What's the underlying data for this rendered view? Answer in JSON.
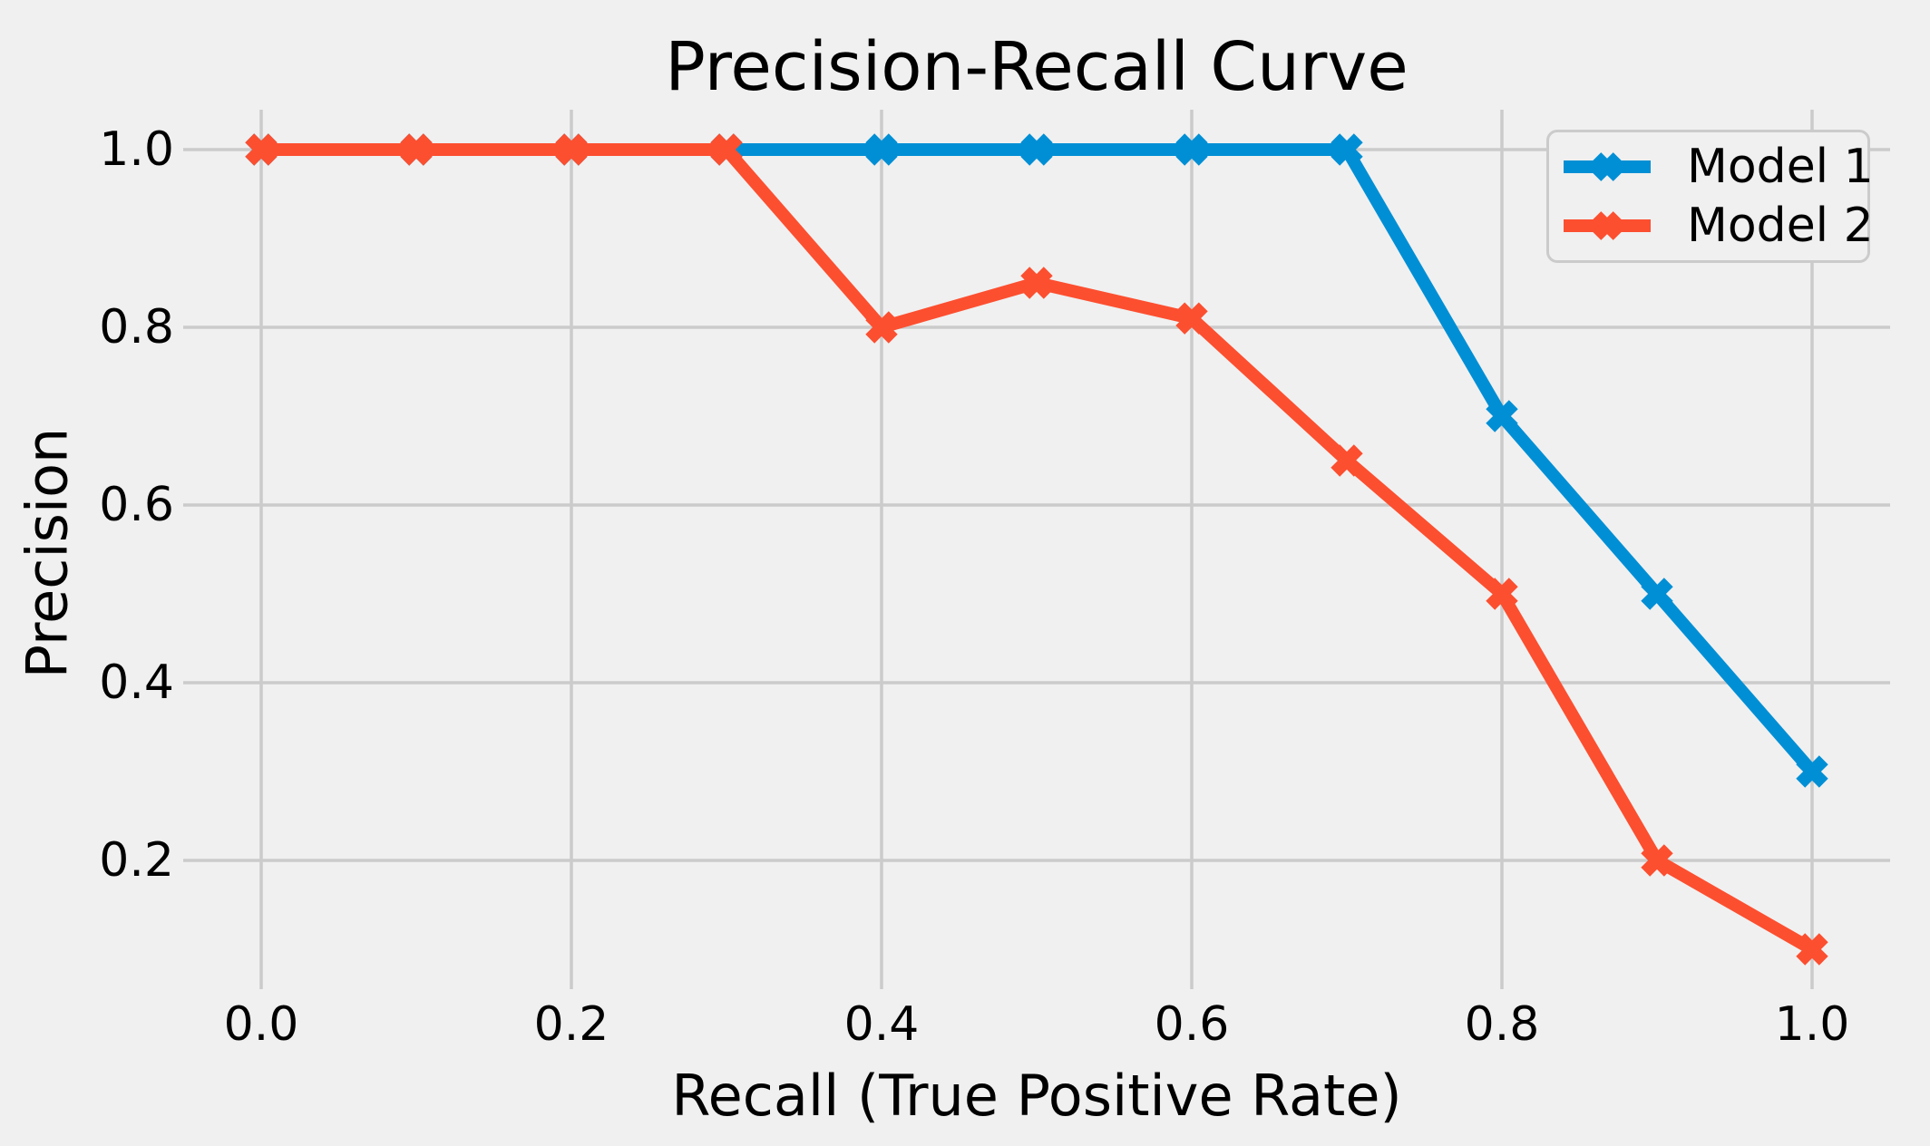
{
  "figure": {
    "background_color": "#f0f0f0",
    "grid_color": "#cbcbcb",
    "text_color": "#000000"
  },
  "chart_data": {
    "type": "line",
    "title": "Precision-Recall Curve",
    "xlabel": "Recall (True Positive Rate)",
    "ylabel": "Precision",
    "grid": true,
    "legend_position": "upper right",
    "xlim": [
      -0.05,
      1.05
    ],
    "ylim": [
      0.055,
      1.045
    ],
    "x": [
      0.0,
      0.1,
      0.2,
      0.3,
      0.4,
      0.5,
      0.6,
      0.7,
      0.8,
      0.9,
      1.0
    ],
    "series": [
      {
        "name": "Model 1",
        "color": "#008fd5",
        "marker": "X",
        "values": [
          1.0,
          1.0,
          1.0,
          1.0,
          1.0,
          1.0,
          1.0,
          1.0,
          0.7,
          0.5,
          0.3
        ]
      },
      {
        "name": "Model 2",
        "color": "#fc4f30",
        "marker": "X",
        "values": [
          1.0,
          1.0,
          1.0,
          1.0,
          0.8,
          0.85,
          0.81,
          0.65,
          0.5,
          0.2,
          0.1
        ]
      }
    ],
    "x_ticks": {
      "values": [
        0.0,
        0.2,
        0.4,
        0.6,
        0.8,
        1.0
      ],
      "labels": [
        "0.0",
        "0.2",
        "0.4",
        "0.6",
        "0.8",
        "1.0"
      ]
    },
    "y_ticks": {
      "values": [
        0.2,
        0.4,
        0.6,
        0.8,
        1.0
      ],
      "labels": [
        "0.2",
        "0.4",
        "0.6",
        "0.8",
        "1.0"
      ]
    }
  },
  "legend": {
    "entries": [
      {
        "label": "Model 1"
      },
      {
        "label": "Model 2"
      }
    ]
  }
}
